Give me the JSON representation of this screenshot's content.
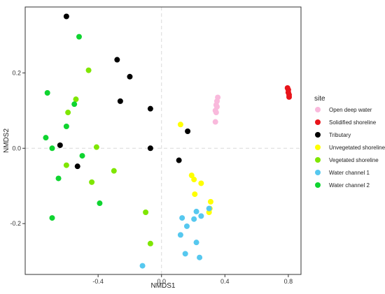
{
  "chart_data": {
    "type": "scatter",
    "xlabel": "NMDS1",
    "ylabel": "NMDS2",
    "xlim": [
      -0.86,
      0.88
    ],
    "ylim": [
      -0.335,
      0.375
    ],
    "x_ticks": [
      -0.4,
      0.0,
      0.4,
      0.8
    ],
    "x_tick_labels": [
      "-0.4",
      "0.0",
      "0.4",
      "0.8"
    ],
    "y_ticks": [
      -0.2,
      0.0,
      0.2
    ],
    "y_tick_labels": [
      "-0.2",
      "0.0",
      "0.2"
    ],
    "reference_lines": {
      "x": 0,
      "y": 0,
      "style": "dashed"
    },
    "grid": false,
    "legend": {
      "title": "site",
      "position": "right"
    },
    "series": [
      {
        "name": "Open deep water",
        "color": "#f9b9dc",
        "points": [
          [
            0.355,
            0.135
          ],
          [
            0.35,
            0.125
          ],
          [
            0.345,
            0.115
          ],
          [
            0.34,
            0.1
          ],
          [
            0.345,
            0.095
          ],
          [
            0.34,
            0.07
          ],
          [
            0.35,
            0.11
          ]
        ]
      },
      {
        "name": "Solidified shoreline",
        "color": "#e8141a",
        "points": [
          [
            0.795,
            0.16
          ],
          [
            0.8,
            0.155
          ],
          [
            0.8,
            0.148
          ],
          [
            0.805,
            0.142
          ],
          [
            0.805,
            0.136
          ]
        ]
      },
      {
        "name": "Tributary",
        "color": "#000000",
        "points": [
          [
            -0.6,
            0.35
          ],
          [
            -0.28,
            0.235
          ],
          [
            -0.2,
            0.19
          ],
          [
            -0.26,
            0.125
          ],
          [
            -0.07,
            0.105
          ],
          [
            0.165,
            0.045
          ],
          [
            -0.64,
            0.008
          ],
          [
            -0.53,
            -0.048
          ],
          [
            -0.07,
            0.0
          ],
          [
            0.11,
            -0.032
          ]
        ]
      },
      {
        "name": "Unvegetated shoreline",
        "color": "#ffff00",
        "points": [
          [
            0.12,
            0.063
          ],
          [
            0.19,
            -0.072
          ],
          [
            0.205,
            -0.083
          ],
          [
            0.25,
            -0.093
          ],
          [
            0.21,
            -0.122
          ],
          [
            0.31,
            -0.142
          ],
          [
            0.305,
            -0.16
          ],
          [
            0.3,
            -0.17
          ]
        ]
      },
      {
        "name": "Vegetated shoreline",
        "color": "#7fe600",
        "points": [
          [
            -0.46,
            0.207
          ],
          [
            -0.54,
            0.13
          ],
          [
            -0.59,
            0.095
          ],
          [
            -0.41,
            0.003
          ],
          [
            -0.6,
            -0.045
          ],
          [
            -0.44,
            -0.09
          ],
          [
            -0.3,
            -0.06
          ],
          [
            -0.1,
            -0.17
          ],
          [
            -0.07,
            -0.253
          ]
        ]
      },
      {
        "name": "Water channel 1",
        "color": "#56c8ef",
        "points": [
          [
            0.22,
            -0.168
          ],
          [
            0.13,
            -0.185
          ],
          [
            0.205,
            -0.188
          ],
          [
            0.25,
            -0.18
          ],
          [
            0.3,
            -0.16
          ],
          [
            0.16,
            -0.207
          ],
          [
            0.12,
            -0.23
          ],
          [
            0.22,
            -0.25
          ],
          [
            0.15,
            -0.28
          ],
          [
            0.24,
            -0.29
          ],
          [
            -0.12,
            -0.312
          ]
        ]
      },
      {
        "name": "Water channel 2",
        "color": "#0fd430",
        "points": [
          [
            -0.52,
            0.296
          ],
          [
            -0.72,
            0.147
          ],
          [
            -0.55,
            0.117
          ],
          [
            -0.6,
            0.058
          ],
          [
            -0.73,
            0.028
          ],
          [
            -0.69,
            0.0
          ],
          [
            -0.5,
            -0.02
          ],
          [
            -0.65,
            -0.08
          ],
          [
            -0.39,
            -0.146
          ],
          [
            -0.69,
            -0.185
          ]
        ]
      }
    ]
  }
}
